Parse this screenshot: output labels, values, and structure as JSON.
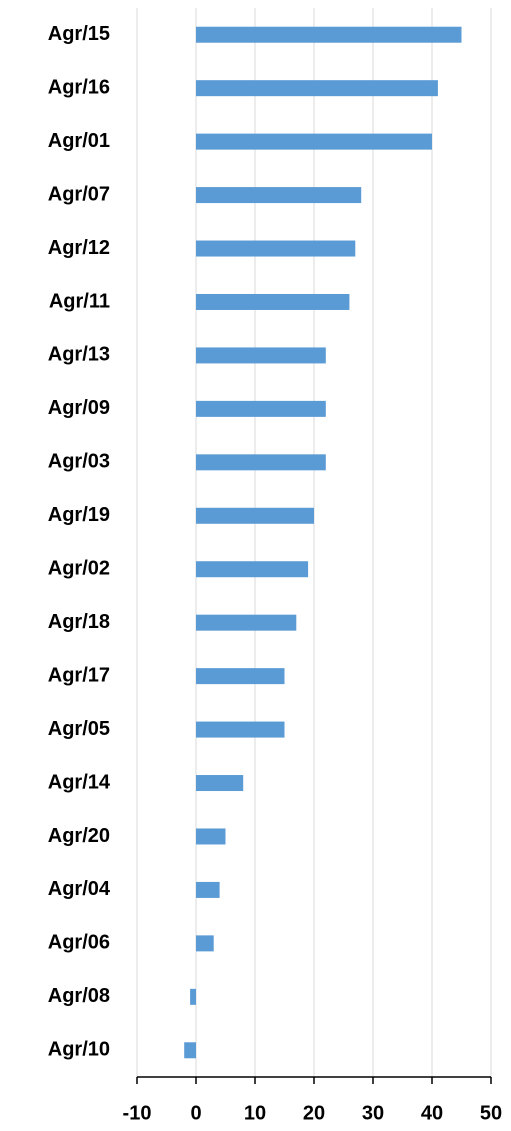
{
  "chart_data": {
    "type": "barh",
    "categories": [
      "Agr/15",
      "Agr/16",
      "Agr/01",
      "Agr/07",
      "Agr/12",
      "Agr/11",
      "Agr/13",
      "Agr/09",
      "Agr/03",
      "Agr/19",
      "Agr/02",
      "Agr/18",
      "Agr/17",
      "Agr/05",
      "Agr/14",
      "Agr/20",
      "Agr/04",
      "Agr/06",
      "Agr/08",
      "Agr/10"
    ],
    "values": [
      45,
      41,
      40,
      28,
      27,
      26,
      22,
      22,
      22,
      20,
      19,
      17,
      15,
      15,
      8,
      5,
      4,
      3,
      -1,
      -2
    ],
    "color": "#5b9bd5",
    "xlim": [
      -10,
      50
    ],
    "xticks": [
      -10,
      0,
      10,
      20,
      30,
      40,
      50
    ],
    "grid": true
  }
}
